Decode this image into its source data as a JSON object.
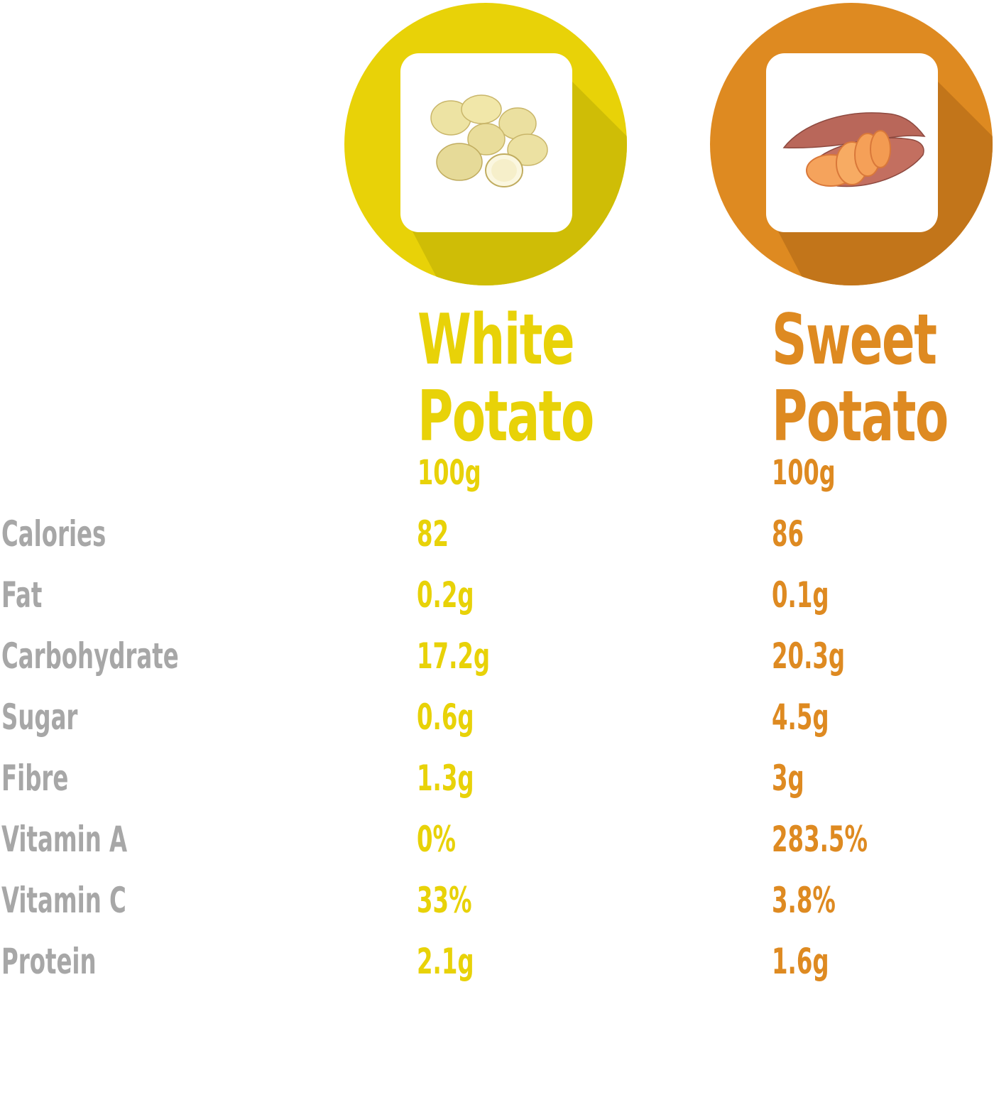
{
  "colors": {
    "white_potato": "#e8d208",
    "white_potato_shadow": "#cfbd06",
    "sweet_potato": "#de8a21",
    "sweet_potato_shadow": "#c2751a",
    "label": "#a7a7a7",
    "tile": "#ffffff"
  },
  "products": [
    {
      "id": "white",
      "title_line1": "White",
      "title_line2": "Potato",
      "serving": "100g",
      "icon": "white-potatoes-icon"
    },
    {
      "id": "sweet",
      "title_line1": "Sweet",
      "title_line2": "Potato",
      "serving": "100g",
      "icon": "sweet-potato-icon"
    }
  ],
  "nutrients": [
    {
      "label": "Calories",
      "white": "82",
      "sweet": "86"
    },
    {
      "label": "Fat",
      "white": "0.2g",
      "sweet": "0.1g"
    },
    {
      "label": "Carbohydrate",
      "white": "17.2g",
      "sweet": "20.3g"
    },
    {
      "label": "Sugar",
      "white": "0.6g",
      "sweet": "4.5g"
    },
    {
      "label": "Fibre",
      "white": "1.3g",
      "sweet": "3g"
    },
    {
      "label": "Vitamin A",
      "white": "0%",
      "sweet": "283.5%"
    },
    {
      "label": "Vitamin C",
      "white": "33%",
      "sweet": "3.8%"
    },
    {
      "label": "Protein",
      "white": "2.1g",
      "sweet": "1.6g"
    }
  ]
}
